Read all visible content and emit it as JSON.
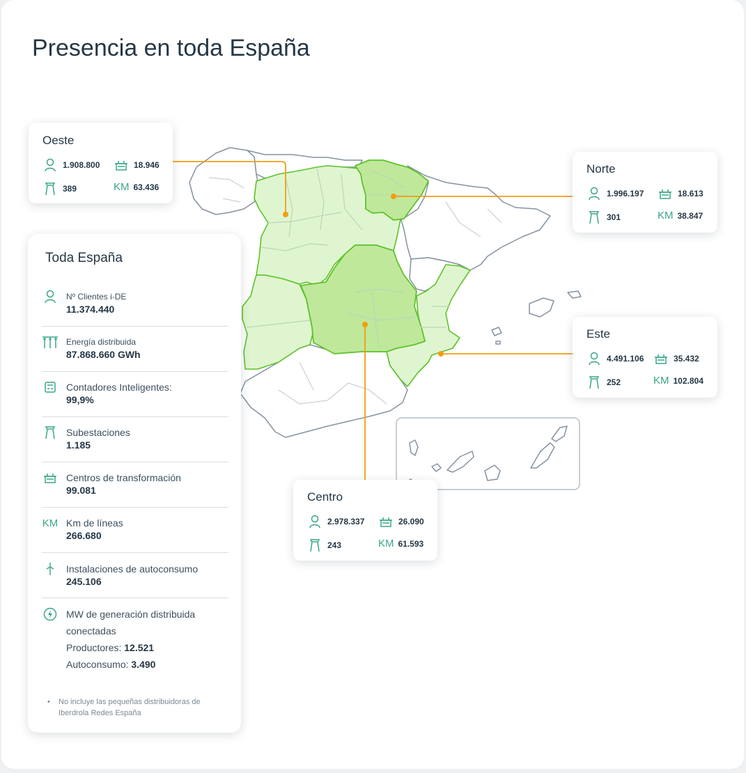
{
  "title": "Presencia en toda España",
  "colors": {
    "accent_line": "#f39c12",
    "region_light": "#dff5cf",
    "region_strong": "#bfe89b",
    "region_border": "#5ec22b",
    "province_border": "#8592a0",
    "icon_green": "#3aa58a"
  },
  "regions": {
    "oeste": {
      "name": "Oeste",
      "clientes": "1.908.800",
      "centros": "18.946",
      "subestaciones": "389",
      "km": "63.436"
    },
    "norte": {
      "name": "Norte",
      "clientes": "1.996.197",
      "centros": "18.613",
      "subestaciones": "301",
      "km": "38.847"
    },
    "este": {
      "name": "Este",
      "clientes": "4.491.106",
      "centros": "35.432",
      "subestaciones": "252",
      "km": "102.804"
    },
    "centro": {
      "name": "Centro",
      "clientes": "2.978.337",
      "centros": "26.090",
      "subestaciones": "243",
      "km": "61.593"
    }
  },
  "km_label": "KM",
  "total": {
    "heading": "Toda España",
    "items": [
      {
        "icon": "user-icon",
        "label": "Nº Clientes i-DE",
        "value": "11.374.440"
      },
      {
        "icon": "power-lines-icon",
        "label": "Energía distribuida",
        "value": "87.868.660 GWh"
      },
      {
        "icon": "smart-meter-icon",
        "label": "Contadores Inteligentes:",
        "value": "99,9%"
      },
      {
        "icon": "substation-tower-icon",
        "label": "Subestaciones",
        "value": "1.185"
      },
      {
        "icon": "transformer-icon",
        "label": "Centros de transformación",
        "value": "99.081"
      },
      {
        "icon": "km-icon",
        "label": "Km de líneas",
        "value": "266.680"
      },
      {
        "icon": "wind-turbine-icon",
        "label": "Instalaciones de autoconsumo",
        "value": "245.106"
      }
    ],
    "generation": {
      "icon": "lightning-icon",
      "label_line1": "MW de generación distribuida",
      "label_line2": "conectadas",
      "productores_label": "Productores:",
      "productores_value": "12.521",
      "autoconsumo_label": "Autoconsumo:",
      "autoconsumo_value": "3.490"
    },
    "note": "No incluye las pequeñas distribuidoras de Iberdrola Redes España"
  }
}
